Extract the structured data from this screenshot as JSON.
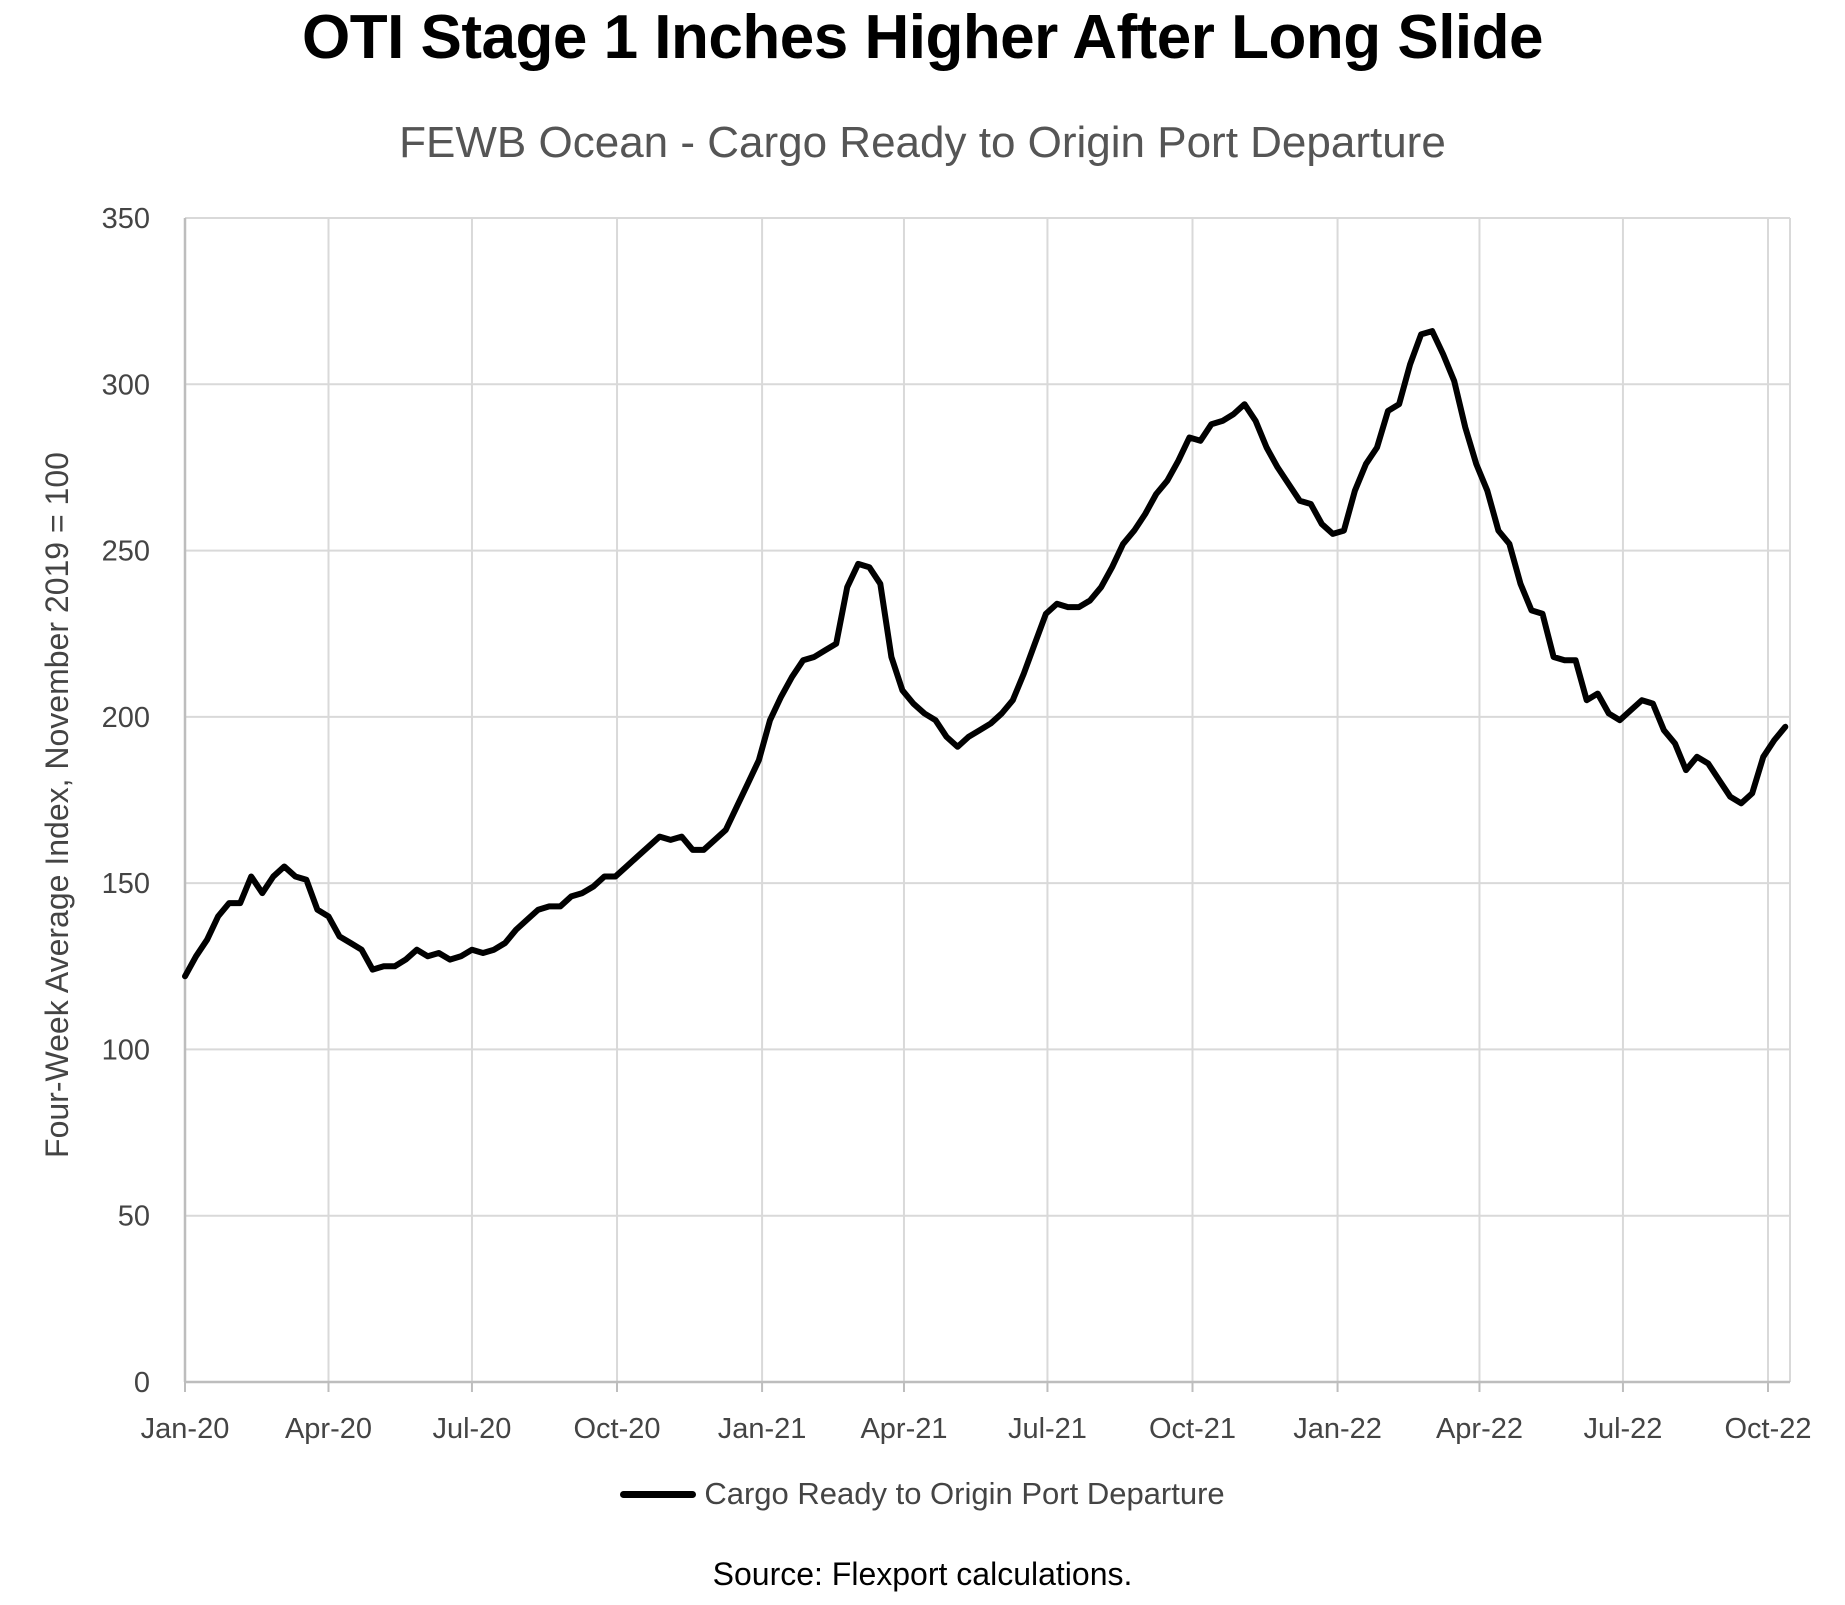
{
  "chart_data": {
    "type": "line",
    "title": "OTI Stage 1 Inches Higher After Long Slide",
    "subtitle": "FEWB Ocean - Cargo Ready to Origin Port Departure",
    "xlabel": "",
    "ylabel": "Four-Week Average Index, November 2019 = 100",
    "source": "Source: Flexport calculations.",
    "x_ticks": [
      "Jan-20",
      "Apr-20",
      "Jul-20",
      "Oct-20",
      "Jan-21",
      "Apr-21",
      "Jul-21",
      "Oct-21",
      "Jan-22",
      "Apr-22",
      "Jul-22",
      "Oct-22"
    ],
    "y_ticks": [
      0,
      50,
      100,
      150,
      200,
      250,
      300,
      350
    ],
    "ylim": [
      0,
      350
    ],
    "grid": true,
    "legend": "bottom",
    "line_color": "#000000",
    "series": [
      {
        "name": "Cargo Ready to Origin Port Departure",
        "points": [
          [
            "2020-01-01",
            122
          ],
          [
            "2020-01-08",
            128
          ],
          [
            "2020-01-15",
            133
          ],
          [
            "2020-01-22",
            140
          ],
          [
            "2020-01-29",
            144
          ],
          [
            "2020-02-05",
            144
          ],
          [
            "2020-02-12",
            152
          ],
          [
            "2020-02-19",
            147
          ],
          [
            "2020-02-26",
            152
          ],
          [
            "2020-03-04",
            155
          ],
          [
            "2020-03-11",
            152
          ],
          [
            "2020-03-18",
            151
          ],
          [
            "2020-03-25",
            142
          ],
          [
            "2020-04-01",
            140
          ],
          [
            "2020-04-08",
            134
          ],
          [
            "2020-04-15",
            132
          ],
          [
            "2020-04-22",
            130
          ],
          [
            "2020-04-29",
            124
          ],
          [
            "2020-05-06",
            125
          ],
          [
            "2020-05-13",
            125
          ],
          [
            "2020-05-20",
            127
          ],
          [
            "2020-05-27",
            130
          ],
          [
            "2020-06-03",
            128
          ],
          [
            "2020-06-10",
            129
          ],
          [
            "2020-06-17",
            127
          ],
          [
            "2020-06-24",
            128
          ],
          [
            "2020-07-01",
            130
          ],
          [
            "2020-07-08",
            129
          ],
          [
            "2020-07-15",
            130
          ],
          [
            "2020-07-22",
            132
          ],
          [
            "2020-07-29",
            136
          ],
          [
            "2020-08-05",
            139
          ],
          [
            "2020-08-12",
            142
          ],
          [
            "2020-08-19",
            143
          ],
          [
            "2020-08-26",
            143
          ],
          [
            "2020-09-02",
            146
          ],
          [
            "2020-09-09",
            147
          ],
          [
            "2020-09-16",
            149
          ],
          [
            "2020-09-23",
            152
          ],
          [
            "2020-09-30",
            152
          ],
          [
            "2020-10-07",
            155
          ],
          [
            "2020-10-14",
            158
          ],
          [
            "2020-10-21",
            161
          ],
          [
            "2020-10-28",
            164
          ],
          [
            "2020-11-04",
            163
          ],
          [
            "2020-11-11",
            164
          ],
          [
            "2020-11-18",
            160
          ],
          [
            "2020-11-25",
            160
          ],
          [
            "2020-12-02",
            163
          ],
          [
            "2020-12-09",
            166
          ],
          [
            "2020-12-16",
            173
          ],
          [
            "2020-12-23",
            180
          ],
          [
            "2020-12-30",
            187
          ],
          [
            "2021-01-06",
            199
          ],
          [
            "2021-01-13",
            206
          ],
          [
            "2021-01-20",
            212
          ],
          [
            "2021-01-27",
            217
          ],
          [
            "2021-02-03",
            218
          ],
          [
            "2021-02-10",
            220
          ],
          [
            "2021-02-17",
            222
          ],
          [
            "2021-02-24",
            239
          ],
          [
            "2021-03-03",
            246
          ],
          [
            "2021-03-10",
            245
          ],
          [
            "2021-03-17",
            240
          ],
          [
            "2021-03-24",
            218
          ],
          [
            "2021-03-31",
            208
          ],
          [
            "2021-04-07",
            204
          ],
          [
            "2021-04-14",
            201
          ],
          [
            "2021-04-21",
            199
          ],
          [
            "2021-04-28",
            194
          ],
          [
            "2021-05-05",
            191
          ],
          [
            "2021-05-12",
            194
          ],
          [
            "2021-05-19",
            196
          ],
          [
            "2021-05-26",
            198
          ],
          [
            "2021-06-02",
            201
          ],
          [
            "2021-06-09",
            205
          ],
          [
            "2021-06-16",
            213
          ],
          [
            "2021-06-23",
            222
          ],
          [
            "2021-06-30",
            231
          ],
          [
            "2021-07-07",
            234
          ],
          [
            "2021-07-14",
            233
          ],
          [
            "2021-07-21",
            233
          ],
          [
            "2021-07-28",
            235
          ],
          [
            "2021-08-04",
            239
          ],
          [
            "2021-08-11",
            245
          ],
          [
            "2021-08-18",
            252
          ],
          [
            "2021-08-25",
            256
          ],
          [
            "2021-09-01",
            261
          ],
          [
            "2021-09-08",
            267
          ],
          [
            "2021-09-15",
            271
          ],
          [
            "2021-09-22",
            277
          ],
          [
            "2021-09-29",
            284
          ],
          [
            "2021-10-06",
            283
          ],
          [
            "2021-10-13",
            288
          ],
          [
            "2021-10-20",
            289
          ],
          [
            "2021-10-27",
            291
          ],
          [
            "2021-11-03",
            294
          ],
          [
            "2021-11-10",
            289
          ],
          [
            "2021-11-17",
            281
          ],
          [
            "2021-11-24",
            275
          ],
          [
            "2021-12-01",
            270
          ],
          [
            "2021-12-08",
            265
          ],
          [
            "2021-12-15",
            264
          ],
          [
            "2021-12-22",
            258
          ],
          [
            "2021-12-29",
            255
          ],
          [
            "2022-01-05",
            256
          ],
          [
            "2022-01-12",
            268
          ],
          [
            "2022-01-19",
            276
          ],
          [
            "2022-01-26",
            281
          ],
          [
            "2022-02-02",
            292
          ],
          [
            "2022-02-09",
            294
          ],
          [
            "2022-02-16",
            306
          ],
          [
            "2022-02-23",
            315
          ],
          [
            "2022-03-02",
            316
          ],
          [
            "2022-03-09",
            309
          ],
          [
            "2022-03-16",
            301
          ],
          [
            "2022-03-23",
            287
          ],
          [
            "2022-03-30",
            276
          ],
          [
            "2022-04-06",
            268
          ],
          [
            "2022-04-13",
            256
          ],
          [
            "2022-04-20",
            252
          ],
          [
            "2022-04-27",
            240
          ],
          [
            "2022-05-04",
            232
          ],
          [
            "2022-05-11",
            231
          ],
          [
            "2022-05-18",
            218
          ],
          [
            "2022-05-25",
            217
          ],
          [
            "2022-06-01",
            217
          ],
          [
            "2022-06-08",
            205
          ],
          [
            "2022-06-15",
            207
          ],
          [
            "2022-06-22",
            201
          ],
          [
            "2022-06-29",
            199
          ],
          [
            "2022-07-06",
            202
          ],
          [
            "2022-07-13",
            205
          ],
          [
            "2022-07-20",
            204
          ],
          [
            "2022-07-27",
            196
          ],
          [
            "2022-08-03",
            192
          ],
          [
            "2022-08-10",
            184
          ],
          [
            "2022-08-17",
            188
          ],
          [
            "2022-08-24",
            186
          ],
          [
            "2022-08-31",
            181
          ],
          [
            "2022-09-07",
            176
          ],
          [
            "2022-09-14",
            174
          ],
          [
            "2022-09-21",
            177
          ],
          [
            "2022-09-28",
            188
          ],
          [
            "2022-10-05",
            193
          ],
          [
            "2022-10-12",
            197
          ]
        ]
      }
    ]
  }
}
